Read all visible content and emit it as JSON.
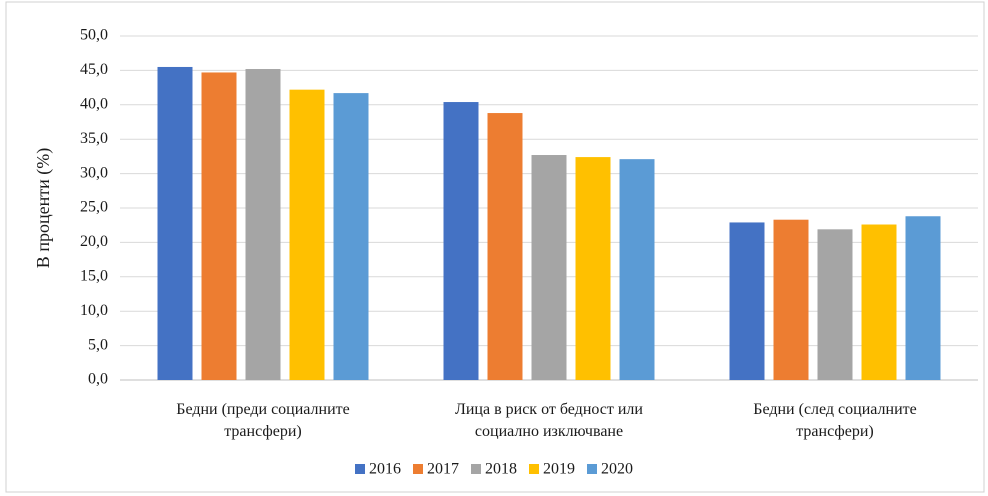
{
  "chart_data": {
    "type": "bar",
    "y_label": "В проценти (%)",
    "categories": [
      "Бедни (преди социалните трансфери)",
      "Лица в риск от бедност или социално изключване",
      "Бедни (след социалните трансфери)"
    ],
    "series": [
      {
        "name": "2016",
        "color": "#4472c4",
        "values": [
          45.5,
          40.4,
          22.9
        ]
      },
      {
        "name": "2017",
        "color": "#ed7d31",
        "values": [
          44.7,
          38.8,
          23.3
        ]
      },
      {
        "name": "2018",
        "color": "#a5a5a5",
        "values": [
          45.2,
          32.7,
          21.9
        ]
      },
      {
        "name": "2019",
        "color": "#ffc000",
        "values": [
          42.2,
          32.4,
          22.6
        ]
      },
      {
        "name": "2020",
        "color": "#5b9bd5",
        "values": [
          41.7,
          32.1,
          23.8
        ]
      }
    ],
    "ylim": [
      0,
      50
    ],
    "yticks": [
      {
        "value": 0,
        "label": "0,0"
      },
      {
        "value": 5,
        "label": "5,0"
      },
      {
        "value": 10,
        "label": "10,0"
      },
      {
        "value": 15,
        "label": "15,0"
      },
      {
        "value": 20,
        "label": "20,0"
      },
      {
        "value": 25,
        "label": "25,0"
      },
      {
        "value": 30,
        "label": "30,0"
      },
      {
        "value": 35,
        "label": "35,0"
      },
      {
        "value": 40,
        "label": "40,0"
      },
      {
        "value": 45,
        "label": "45,0"
      },
      {
        "value": 50,
        "label": "50,0"
      }
    ],
    "grid": true,
    "legend": "bottom"
  }
}
